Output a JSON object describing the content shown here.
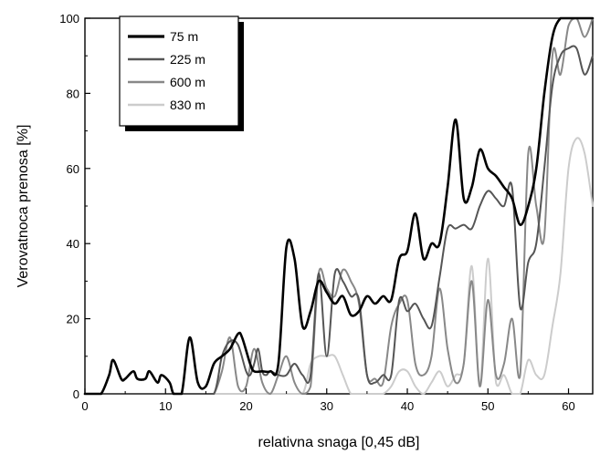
{
  "chart_data": {
    "type": "line",
    "xlabel": "relativna snaga [0,45 dB]",
    "ylabel": "Verovatnoca prenosa [%]",
    "xlim": [
      0,
      63
    ],
    "ylim": [
      0,
      100
    ],
    "xticks": [
      0,
      10,
      20,
      30,
      40,
      50,
      60
    ],
    "yticks": [
      0,
      20,
      40,
      60,
      80,
      100
    ],
    "grid": false,
    "legend_position": "top-left",
    "series": [
      {
        "name": "75 m",
        "color": "#000000",
        "width": 2.6,
        "x": [
          0,
          1,
          2,
          3,
          3.5,
          4.5,
          5,
          6,
          6.5,
          7.5,
          8,
          9,
          9.5,
          10.5,
          11,
          12,
          13,
          14,
          15,
          16,
          17,
          18,
          19,
          19.5,
          20.5,
          21,
          22,
          23,
          24,
          25,
          26,
          27,
          28,
          29,
          30,
          31,
          32,
          33,
          34,
          35,
          36,
          37,
          38,
          39,
          40,
          41,
          42,
          43,
          44,
          45,
          46,
          47,
          48,
          49,
          50,
          51,
          52,
          53,
          54,
          55,
          56,
          57,
          58,
          59,
          60,
          61,
          62,
          63
        ],
        "y": [
          0,
          0,
          0,
          5,
          9,
          4,
          4,
          6,
          4,
          4,
          6,
          3,
          5,
          3,
          0,
          0,
          15,
          3,
          2,
          8,
          10,
          12,
          16,
          15,
          8,
          6,
          6,
          6,
          8,
          39,
          36,
          18,
          22,
          30,
          27,
          24,
          26,
          21,
          22,
          26,
          24,
          26,
          25,
          36,
          38,
          48,
          36,
          40,
          40,
          55,
          73,
          52,
          55,
          65,
          60,
          58,
          55,
          52,
          45,
          50,
          60,
          80,
          95,
          100,
          100,
          100,
          100,
          100
        ]
      },
      {
        "name": "225 m",
        "color": "#555555",
        "width": 2,
        "x": [
          0,
          5,
          10,
          12,
          14,
          16,
          17,
          18,
          19,
          20,
          20.5,
          21,
          21.5,
          22,
          22.5,
          23,
          24,
          25,
          26,
          27,
          28,
          29,
          30,
          31,
          32,
          33,
          34,
          35,
          36,
          37,
          38,
          39,
          40,
          41,
          42,
          43,
          44,
          45,
          46,
          47,
          48,
          49,
          50,
          51,
          52,
          53,
          54,
          55,
          56,
          57,
          58,
          59,
          60,
          61,
          62,
          63
        ],
        "y": [
          0,
          0,
          0,
          0,
          0,
          0,
          10,
          14,
          13,
          6,
          5,
          8,
          12,
          6,
          5,
          6,
          5,
          5,
          8,
          5,
          5,
          32,
          10,
          32,
          30,
          26,
          25,
          5,
          3,
          5,
          5,
          25,
          22,
          24,
          20,
          18,
          31,
          44,
          44,
          45,
          44,
          50,
          54,
          52,
          50,
          55,
          23,
          35,
          40,
          60,
          82,
          90,
          92,
          92,
          85,
          90
        ]
      },
      {
        "name": "600 m",
        "color": "#888888",
        "width": 2,
        "x": [
          0,
          5,
          10,
          15,
          16,
          17,
          18,
          19,
          20,
          21,
          22,
          23,
          24,
          25,
          26,
          27,
          28,
          29,
          30,
          31,
          32,
          33,
          34,
          35,
          36,
          37,
          38,
          39,
          40,
          41,
          42,
          43,
          44,
          45,
          46,
          47,
          48,
          49,
          50,
          51,
          52,
          53,
          54,
          55,
          56,
          57,
          58,
          59,
          60,
          61,
          62,
          63
        ],
        "y": [
          0,
          0,
          0,
          0,
          0,
          6,
          15,
          2,
          2,
          12,
          3,
          0,
          5,
          10,
          3,
          0,
          2,
          32,
          28,
          26,
          33,
          30,
          24,
          5,
          4,
          3,
          18,
          24,
          25,
          8,
          5,
          10,
          28,
          12,
          3,
          8,
          30,
          2,
          25,
          5,
          8,
          20,
          5,
          64,
          50,
          42,
          90,
          85,
          98,
          100,
          95,
          100
        ]
      },
      {
        "name": "830 m",
        "color": "#cccccc",
        "width": 2,
        "x": [
          0,
          5,
          10,
          15,
          20,
          25,
          27,
          28,
          29,
          30,
          31,
          32,
          33,
          34,
          35,
          36,
          37,
          38,
          39,
          40,
          41,
          42,
          43,
          44,
          45,
          46,
          47,
          48,
          49,
          50,
          51,
          52,
          53,
          54,
          55,
          56,
          57,
          58,
          59,
          60,
          61,
          62,
          63
        ],
        "y": [
          0,
          0,
          0,
          0,
          0,
          0,
          0,
          8,
          10,
          10,
          10,
          5,
          0,
          0,
          0,
          0,
          0,
          2,
          6,
          6,
          2,
          0,
          3,
          6,
          2,
          5,
          8,
          34,
          2,
          36,
          3,
          5,
          0,
          0,
          9,
          5,
          5,
          18,
          32,
          60,
          68,
          64,
          50
        ]
      }
    ]
  }
}
